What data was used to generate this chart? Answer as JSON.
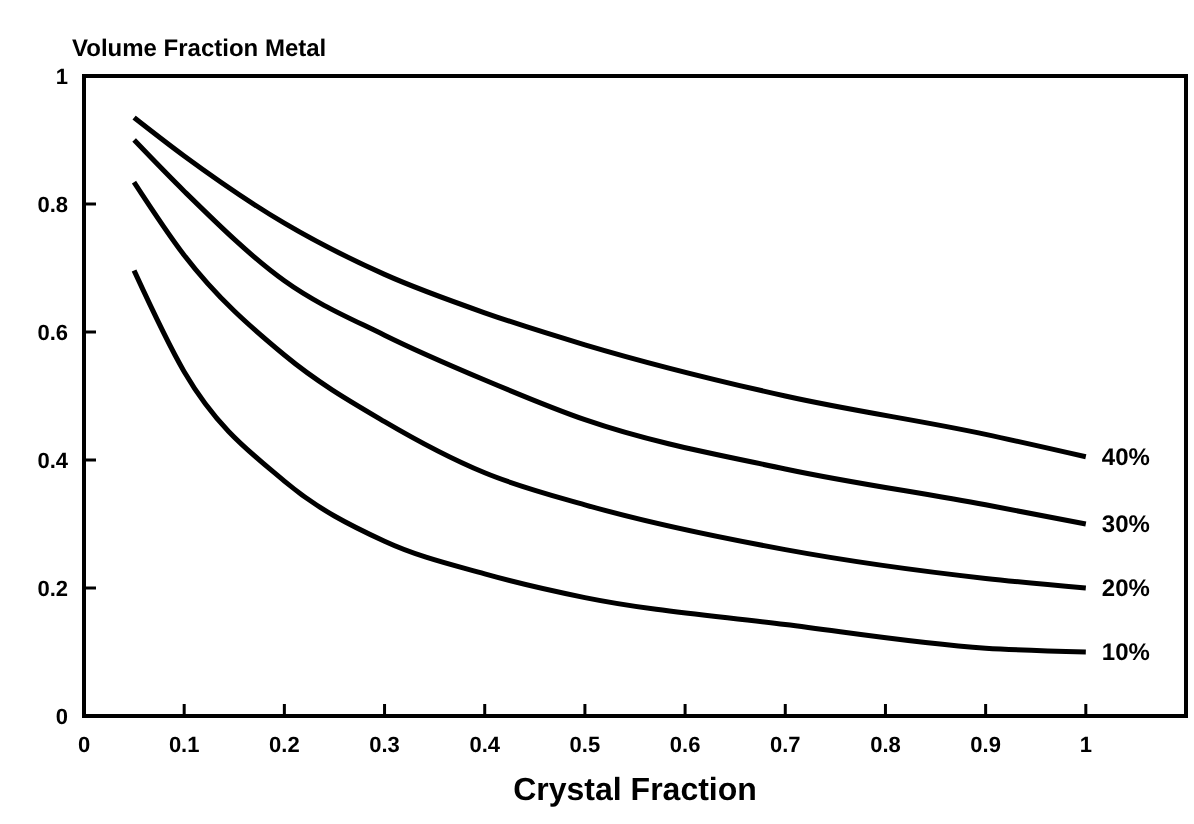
{
  "chart_data": {
    "type": "line",
    "ylabel": "Volume Fraction Metal",
    "xlabel": "Crystal Fraction",
    "x": [
      0.05,
      0.1,
      0.2,
      0.3,
      0.4,
      0.5,
      0.7,
      0.9,
      1
    ],
    "series": [
      {
        "name": "40%",
        "color": "#000000",
        "values": [
          0.935,
          0.875,
          0.77,
          0.69,
          0.63,
          0.58,
          0.5,
          0.44,
          0.405
        ]
      },
      {
        "name": "30%",
        "color": "#000000",
        "values": [
          0.9,
          0.82,
          0.68,
          0.595,
          0.525,
          0.463,
          0.386,
          0.33,
          0.3
        ]
      },
      {
        "name": "20%",
        "color": "#000000",
        "values": [
          0.834,
          0.72,
          0.564,
          0.46,
          0.38,
          0.33,
          0.26,
          0.215,
          0.2
        ]
      },
      {
        "name": "10%",
        "color": "#000000",
        "values": [
          0.696,
          0.538,
          0.367,
          0.273,
          0.222,
          0.185,
          0.143,
          0.106,
          0.1
        ]
      }
    ],
    "xlim": [
      0,
      1.1
    ],
    "ylim": [
      0,
      1
    ],
    "xticks": [
      0,
      0.1,
      0.2,
      0.3,
      0.4,
      0.5,
      0.6,
      0.7,
      0.8,
      0.9,
      1
    ],
    "yticks": [
      0,
      0.2,
      0.4,
      0.6,
      0.8,
      1
    ],
    "grid": false,
    "marker": "none",
    "line_style": "solid"
  }
}
